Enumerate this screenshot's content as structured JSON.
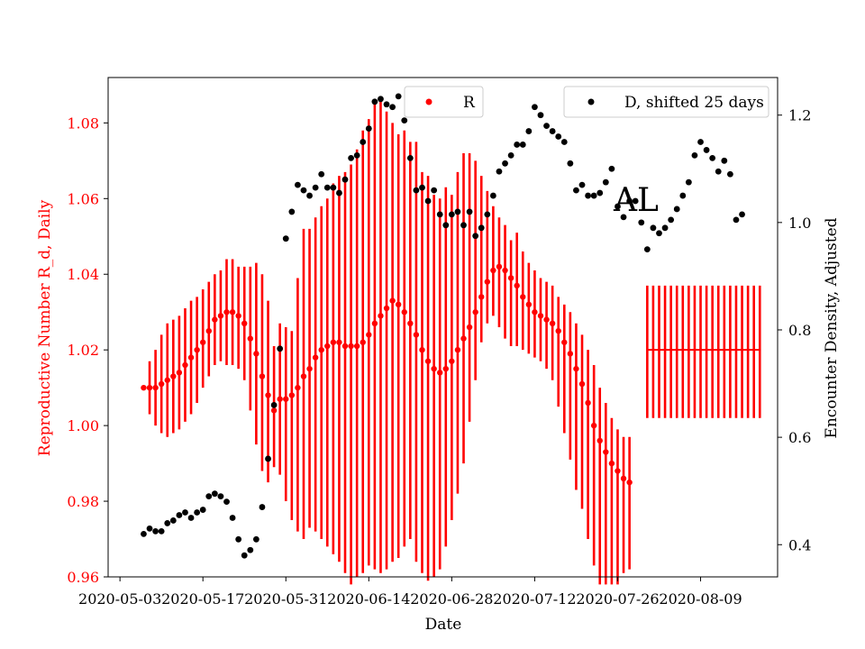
{
  "chart_data": {
    "type": "scatter",
    "panel_label": "AL",
    "xlabel": "Date",
    "ylabel_left": "Reproductive Number R_d, Daily",
    "ylabel_right": "Encounter Density, Adjusted",
    "ylim_left": [
      0.96,
      1.092
    ],
    "ylim_right": [
      0.34,
      1.27
    ],
    "xlim": [
      "2020-05-01",
      "2020-08-22"
    ],
    "x_ticks": [
      "2020-05-03",
      "2020-05-17",
      "2020-05-31",
      "2020-06-14",
      "2020-06-28",
      "2020-07-12",
      "2020-07-26",
      "2020-08-09"
    ],
    "y_ticks_left": [
      "0.96",
      "0.98",
      "1.00",
      "1.02",
      "1.04",
      "1.06",
      "1.08"
    ],
    "y_ticks_right": [
      "0.4",
      "0.6",
      "0.8",
      "1.0",
      "1.2"
    ],
    "legend_R": "R",
    "legend_D": "D, shifted 25 days",
    "colors": {
      "R": "#ff0000",
      "D": "#000000",
      "axis_left": "#ff0000",
      "axis_right": "#000000"
    },
    "series_R": {
      "name": "R",
      "start_date": "2020-05-07",
      "values": [
        1.01,
        1.01,
        1.01,
        1.011,
        1.012,
        1.013,
        1.014,
        1.016,
        1.018,
        1.02,
        1.022,
        1.025,
        1.028,
        1.029,
        1.03,
        1.03,
        1.029,
        1.027,
        1.023,
        1.019,
        1.013,
        1.008,
        1.004,
        1.007,
        1.007,
        1.008,
        1.01,
        1.013,
        1.015,
        1.018,
        1.02,
        1.021,
        1.022,
        1.022,
        1.021,
        1.021,
        1.021,
        1.022,
        1.024,
        1.027,
        1.029,
        1.031,
        1.033,
        1.032,
        1.03,
        1.027,
        1.024,
        1.02,
        1.017,
        1.015,
        1.014,
        1.015,
        1.017,
        1.02,
        1.023,
        1.026,
        1.03,
        1.034,
        1.038,
        1.041,
        1.042,
        1.041,
        1.039,
        1.037,
        1.034,
        1.032,
        1.03,
        1.029,
        1.028,
        1.027,
        1.025,
        1.022,
        1.019,
        1.015,
        1.011,
        1.006,
        1.0,
        0.996,
        0.993,
        0.99,
        0.988,
        0.986,
        0.985
      ],
      "lower": [
        1.01,
        1.003,
        1.0,
        0.998,
        0.997,
        0.998,
        0.999,
        1.001,
        1.003,
        1.006,
        1.01,
        1.013,
        1.016,
        1.017,
        1.016,
        1.016,
        1.015,
        1.012,
        1.004,
        0.995,
        0.988,
        0.985,
        0.989,
        0.987,
        0.98,
        0.975,
        0.972,
        0.97,
        0.973,
        0.972,
        0.97,
        0.968,
        0.966,
        0.964,
        0.961,
        0.958,
        0.96,
        0.961,
        0.963,
        0.962,
        0.961,
        0.962,
        0.964,
        0.965,
        0.968,
        0.97,
        0.964,
        0.961,
        0.959,
        0.96,
        0.962,
        0.968,
        0.975,
        0.982,
        0.99,
        1.001,
        1.012,
        1.022,
        1.027,
        1.029,
        1.026,
        1.023,
        1.021,
        1.021,
        1.02,
        1.019,
        1.018,
        1.017,
        1.015,
        1.012,
        1.005,
        0.998,
        0.991,
        0.983,
        0.978,
        0.97,
        0.963,
        0.958,
        0.958,
        0.958,
        0.958,
        0.961,
        0.962
      ]
    },
    "series_R_upper": [
      1.01,
      1.017,
      1.02,
      1.024,
      1.027,
      1.028,
      1.029,
      1.031,
      1.033,
      1.034,
      1.036,
      1.038,
      1.04,
      1.041,
      1.044,
      1.044,
      1.042,
      1.042,
      1.042,
      1.043,
      1.04,
      1.033,
      1.021,
      1.027,
      1.026,
      1.025,
      1.039,
      1.052,
      1.052,
      1.055,
      1.058,
      1.06,
      1.064,
      1.066,
      1.067,
      1.069,
      1.073,
      1.078,
      1.081,
      1.086,
      1.086,
      1.083,
      1.08,
      1.077,
      1.078,
      1.075,
      1.075,
      1.067,
      1.066,
      1.061,
      1.06,
      1.063,
      1.061,
      1.067,
      1.072,
      1.072,
      1.07,
      1.066,
      1.062,
      1.058,
      1.055,
      1.053,
      1.049,
      1.051,
      1.046,
      1.043,
      1.041,
      1.039,
      1.038,
      1.037,
      1.034,
      1.032,
      1.03,
      1.027,
      1.024,
      1.02,
      1.016,
      1.01,
      1.006,
      1.002,
      0.999,
      0.997,
      0.997
    ],
    "series_R_flat": {
      "start_date": "2020-07-31",
      "end_date": "2020-08-19",
      "value": 1.02,
      "lower": 1.002,
      "upper": 1.037
    },
    "series_D": {
      "name": "D, shifted 25 days",
      "points": [
        [
          "2020-05-07",
          0.42
        ],
        [
          "2020-05-08",
          0.43
        ],
        [
          "2020-05-09",
          0.425
        ],
        [
          "2020-05-10",
          0.425
        ],
        [
          "2020-05-11",
          0.44
        ],
        [
          "2020-05-12",
          0.445
        ],
        [
          "2020-05-13",
          0.455
        ],
        [
          "2020-05-14",
          0.46
        ],
        [
          "2020-05-15",
          0.45
        ],
        [
          "2020-05-16",
          0.46
        ],
        [
          "2020-05-17",
          0.465
        ],
        [
          "2020-05-18",
          0.49
        ],
        [
          "2020-05-19",
          0.495
        ],
        [
          "2020-05-20",
          0.49
        ],
        [
          "2020-05-21",
          0.48
        ],
        [
          "2020-05-22",
          0.45
        ],
        [
          "2020-05-23",
          0.41
        ],
        [
          "2020-05-24",
          0.38
        ],
        [
          "2020-05-25",
          0.39
        ],
        [
          "2020-05-26",
          0.41
        ],
        [
          "2020-05-27",
          0.47
        ],
        [
          "2020-05-28",
          0.56
        ],
        [
          "2020-05-29",
          0.66
        ],
        [
          "2020-05-30",
          0.765
        ],
        [
          "2020-05-31",
          0.97
        ],
        [
          "2020-06-01",
          1.02
        ],
        [
          "2020-06-02",
          1.07
        ],
        [
          "2020-06-03",
          1.06
        ],
        [
          "2020-06-04",
          1.05
        ],
        [
          "2020-06-05",
          1.065
        ],
        [
          "2020-06-06",
          1.09
        ],
        [
          "2020-06-07",
          1.065
        ],
        [
          "2020-06-08",
          1.065
        ],
        [
          "2020-06-09",
          1.055
        ],
        [
          "2020-06-10",
          1.08
        ],
        [
          "2020-06-11",
          1.12
        ],
        [
          "2020-06-12",
          1.125
        ],
        [
          "2020-06-13",
          1.15
        ],
        [
          "2020-06-14",
          1.175
        ],
        [
          "2020-06-15",
          1.225
        ],
        [
          "2020-06-16",
          1.23
        ],
        [
          "2020-06-17",
          1.22
        ],
        [
          "2020-06-18",
          1.215
        ],
        [
          "2020-06-19",
          1.235
        ],
        [
          "2020-06-20",
          1.19
        ],
        [
          "2020-06-21",
          1.12
        ],
        [
          "2020-06-22",
          1.06
        ],
        [
          "2020-06-23",
          1.065
        ],
        [
          "2020-06-24",
          1.04
        ],
        [
          "2020-06-25",
          1.06
        ],
        [
          "2020-06-26",
          1.015
        ],
        [
          "2020-06-27",
          0.995
        ],
        [
          "2020-06-28",
          1.015
        ],
        [
          "2020-06-29",
          1.02
        ],
        [
          "2020-06-30",
          0.995
        ],
        [
          "2020-07-01",
          1.02
        ],
        [
          "2020-07-02",
          0.975
        ],
        [
          "2020-07-03",
          0.99
        ],
        [
          "2020-07-04",
          1.015
        ],
        [
          "2020-07-05",
          1.05
        ],
        [
          "2020-07-06",
          1.095
        ],
        [
          "2020-07-07",
          1.11
        ],
        [
          "2020-07-08",
          1.125
        ],
        [
          "2020-07-09",
          1.145
        ],
        [
          "2020-07-10",
          1.145
        ],
        [
          "2020-07-11",
          1.17
        ],
        [
          "2020-07-12",
          1.215
        ],
        [
          "2020-07-13",
          1.2
        ],
        [
          "2020-07-14",
          1.18
        ],
        [
          "2020-07-15",
          1.17
        ],
        [
          "2020-07-16",
          1.16
        ],
        [
          "2020-07-17",
          1.15
        ],
        [
          "2020-07-18",
          1.11
        ],
        [
          "2020-07-19",
          1.06
        ],
        [
          "2020-07-20",
          1.07
        ],
        [
          "2020-07-21",
          1.05
        ],
        [
          "2020-07-22",
          1.05
        ],
        [
          "2020-07-23",
          1.055
        ],
        [
          "2020-07-24",
          1.075
        ],
        [
          "2020-07-25",
          1.1
        ],
        [
          "2020-07-26",
          1.03
        ],
        [
          "2020-07-27",
          1.01
        ],
        [
          "2020-07-28",
          1.04
        ],
        [
          "2020-07-29",
          1.04
        ],
        [
          "2020-07-30",
          1.0
        ],
        [
          "2020-07-31",
          0.95
        ],
        [
          "2020-08-01",
          0.99
        ],
        [
          "2020-08-02",
          0.98
        ],
        [
          "2020-08-03",
          0.99
        ],
        [
          "2020-08-04",
          1.005
        ],
        [
          "2020-08-05",
          1.025
        ],
        [
          "2020-08-06",
          1.05
        ],
        [
          "2020-08-07",
          1.075
        ],
        [
          "2020-08-08",
          1.125
        ],
        [
          "2020-08-09",
          1.15
        ],
        [
          "2020-08-10",
          1.135
        ],
        [
          "2020-08-11",
          1.12
        ],
        [
          "2020-08-12",
          1.095
        ],
        [
          "2020-08-13",
          1.115
        ],
        [
          "2020-08-14",
          1.09
        ],
        [
          "2020-08-15",
          1.005
        ],
        [
          "2020-08-16",
          1.015
        ]
      ]
    }
  }
}
